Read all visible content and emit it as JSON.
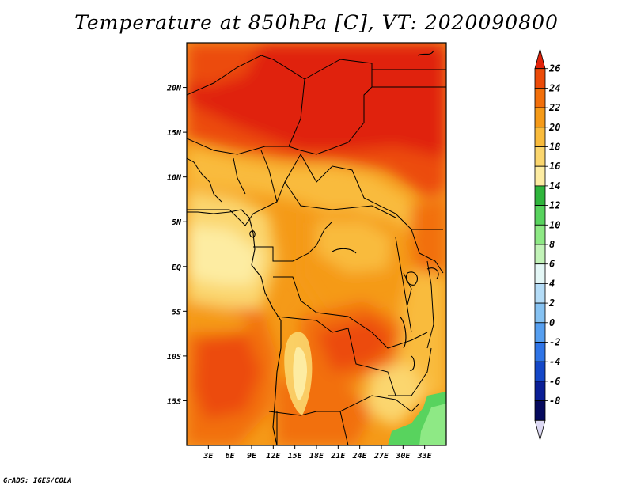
{
  "title": "Temperature at 850hPa [C], VT: 2020090800",
  "credit": "GrADS: IGES/COLA",
  "map": {
    "lon_range": [
      0,
      36
    ],
    "lat_range": [
      -20,
      25
    ],
    "lon_ticks": [
      {
        "value": 3,
        "label": "3E"
      },
      {
        "value": 6,
        "label": "6E"
      },
      {
        "value": 9,
        "label": "9E"
      },
      {
        "value": 12,
        "label": "12E"
      },
      {
        "value": 15,
        "label": "15E"
      },
      {
        "value": 18,
        "label": "18E"
      },
      {
        "value": 21,
        "label": "21E"
      },
      {
        "value": 24,
        "label": "24E"
      },
      {
        "value": 27,
        "label": "27E"
      },
      {
        "value": 30,
        "label": "30E"
      },
      {
        "value": 33,
        "label": "33E"
      }
    ],
    "lat_ticks": [
      {
        "value": 20,
        "label": "20N"
      },
      {
        "value": 15,
        "label": "15N"
      },
      {
        "value": 10,
        "label": "10N"
      },
      {
        "value": 5,
        "label": "5N"
      },
      {
        "value": 0,
        "label": "EQ"
      },
      {
        "value": -5,
        "label": "5S"
      },
      {
        "value": -10,
        "label": "10S"
      },
      {
        "value": -15,
        "label": "15S"
      }
    ]
  },
  "colorbar": {
    "levels": [
      26,
      24,
      22,
      20,
      18,
      16,
      14,
      12,
      10,
      8,
      6,
      4,
      2,
      0,
      -2,
      -4,
      -6,
      -8
    ],
    "colors": [
      "#e0220a",
      "#ec4b08",
      "#f26f0a",
      "#f59a18",
      "#f9bb3c",
      "#fbd66e",
      "#fdeca2",
      "#2fb53c",
      "#58d35e",
      "#8ee985",
      "#c2f3b8",
      "#e4f7f6",
      "#b4dcf7",
      "#86c2f2",
      "#569ff0",
      "#2f74e6",
      "#1447c8",
      "#0a1e96",
      "#060a5e",
      "#dcd8f2"
    ]
  }
}
